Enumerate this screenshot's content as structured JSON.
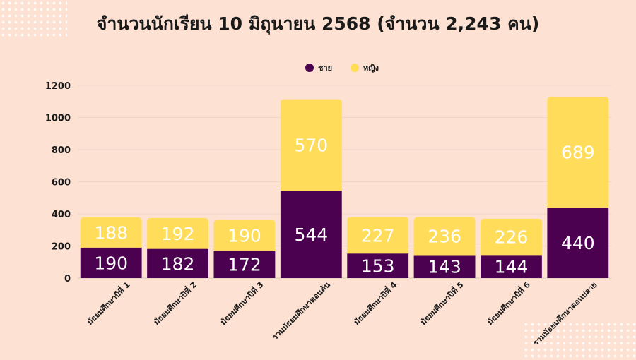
{
  "chart_data": {
    "type": "bar",
    "stacked": true,
    "title": "จำนวนนักเรียน 10 มิถุนายน 2568 (จำนวน 2,243 คน)",
    "categories": [
      "มัธยมศึกษาปีที่ 1",
      "มัธยมศึกษาปีที่ 2",
      "มัธยมศึกษาปีที่ 3",
      "รวมมัธยมศึกษาตอนต้น",
      "มัธยมศึกษาปีที่ 4",
      "มัธยมศึกษาปีที่ 5",
      "มัธยมศึกษาปีที่ 6",
      "รวมมัธยมศึกษาตอนปลาย"
    ],
    "series": [
      {
        "name": "ชาย",
        "color": "#4b0150",
        "values": [
          190,
          182,
          172,
          544,
          153,
          143,
          144,
          440
        ]
      },
      {
        "name": "หญิง",
        "color": "#ffdc5a",
        "values": [
          188,
          192,
          190,
          570,
          227,
          236,
          226,
          689
        ]
      }
    ],
    "ylim": [
      0,
      1200
    ],
    "yticks": [
      0,
      200,
      400,
      600,
      800,
      1000,
      1200
    ],
    "grid": true,
    "legend": "top-center",
    "xlabel": "",
    "ylabel": ""
  }
}
